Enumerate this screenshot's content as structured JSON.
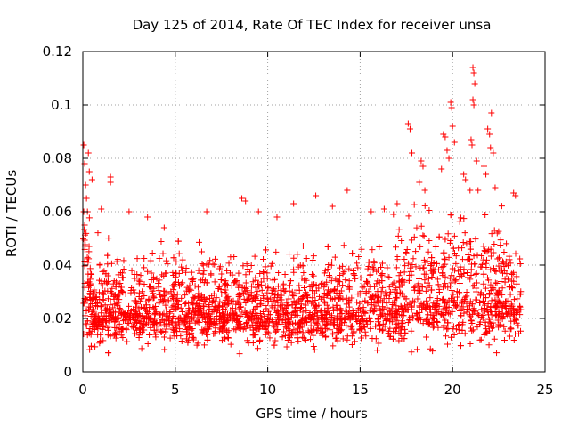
{
  "chart_data": {
    "type": "scatter",
    "title": "Day 125 of 2014, Rate Of TEC Index for receiver unsa",
    "xlabel": "GPS time / hours",
    "ylabel": "ROTI / TECUs",
    "xlim": [
      0,
      25
    ],
    "ylim": [
      0,
      0.12
    ],
    "xticks": [
      0,
      5,
      10,
      15,
      20,
      25
    ],
    "yticks": [
      0,
      0.02,
      0.04,
      0.06,
      0.08,
      0.1,
      0.12
    ],
    "xtick_labels": [
      "0",
      "5",
      "10",
      "15",
      "20",
      "25"
    ],
    "ytick_labels": [
      "0",
      "0.02",
      "0.04",
      "0.06",
      "0.08",
      "0.1",
      "0.12"
    ],
    "grid": true,
    "marker": "+",
    "marker_color": "#ff0000",
    "series": [
      {
        "name": "ROTI",
        "points": [
          [
            0.05,
            0.085
          ],
          [
            0.1,
            0.078
          ],
          [
            0.15,
            0.07
          ],
          [
            0.2,
            0.065
          ],
          [
            0.25,
            0.06
          ],
          [
            0.3,
            0.082
          ],
          [
            0.35,
            0.075
          ],
          [
            0.5,
            0.072
          ],
          [
            0.05,
            0.06
          ],
          [
            0.1,
            0.055
          ],
          [
            1.5,
            0.073
          ],
          [
            1.5,
            0.071
          ],
          [
            4.4,
            0.054
          ],
          [
            6.7,
            0.06
          ],
          [
            8.6,
            0.065
          ],
          [
            8.8,
            0.064
          ],
          [
            11.4,
            0.063
          ],
          [
            12.6,
            0.066
          ],
          [
            14.3,
            0.068
          ],
          [
            16.3,
            0.061
          ],
          [
            17.6,
            0.093
          ],
          [
            17.7,
            0.091
          ],
          [
            17.8,
            0.082
          ],
          [
            18.3,
            0.079
          ],
          [
            18.4,
            0.077
          ],
          [
            18.2,
            0.071
          ],
          [
            18.5,
            0.068
          ],
          [
            19.5,
            0.089
          ],
          [
            19.6,
            0.088
          ],
          [
            19.7,
            0.083
          ],
          [
            19.8,
            0.08
          ],
          [
            19.4,
            0.076
          ],
          [
            19.9,
            0.101
          ],
          [
            19.95,
            0.099
          ],
          [
            20.0,
            0.092
          ],
          [
            20.1,
            0.086
          ],
          [
            20.6,
            0.074
          ],
          [
            20.7,
            0.072
          ],
          [
            21.1,
            0.114
          ],
          [
            21.15,
            0.112
          ],
          [
            21.2,
            0.108
          ],
          [
            21.1,
            0.102
          ],
          [
            21.15,
            0.1
          ],
          [
            21.0,
            0.087
          ],
          [
            21.05,
            0.085
          ],
          [
            21.3,
            0.079
          ],
          [
            21.9,
            0.091
          ],
          [
            22.0,
            0.089
          ],
          [
            22.1,
            0.097
          ],
          [
            22.05,
            0.084
          ],
          [
            22.2,
            0.082
          ],
          [
            21.7,
            0.077
          ],
          [
            21.8,
            0.074
          ],
          [
            22.3,
            0.069
          ],
          [
            23.3,
            0.067
          ],
          [
            23.4,
            0.066
          ],
          [
            1.0,
            0.061
          ],
          [
            2.5,
            0.06
          ],
          [
            3.5,
            0.058
          ],
          [
            9.5,
            0.06
          ],
          [
            10.5,
            0.058
          ],
          [
            13.5,
            0.062
          ],
          [
            15.6,
            0.06
          ],
          [
            16.8,
            0.059
          ],
          [
            17.0,
            0.063
          ]
        ]
      }
    ]
  }
}
